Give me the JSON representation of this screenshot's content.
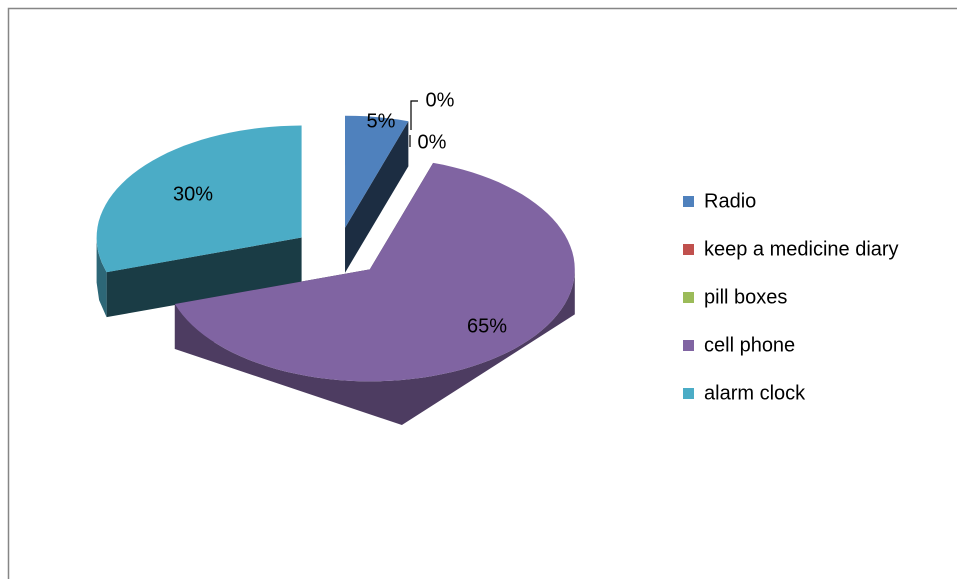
{
  "chart_data": {
    "type": "pie",
    "three_d": true,
    "exploded": true,
    "categories": [
      "Radio",
      "keep a medicine diary",
      "pill boxes",
      "cell phone",
      "alarm clock"
    ],
    "values": [
      5,
      0,
      0,
      65,
      30
    ],
    "value_labels": [
      "5%",
      "0%",
      "0%",
      "65%",
      "30%"
    ],
    "colors": [
      "#4f81bd",
      "#c0504d",
      "#9bbb59",
      "#8064a2",
      "#4bacc6"
    ],
    "legend": "right"
  }
}
